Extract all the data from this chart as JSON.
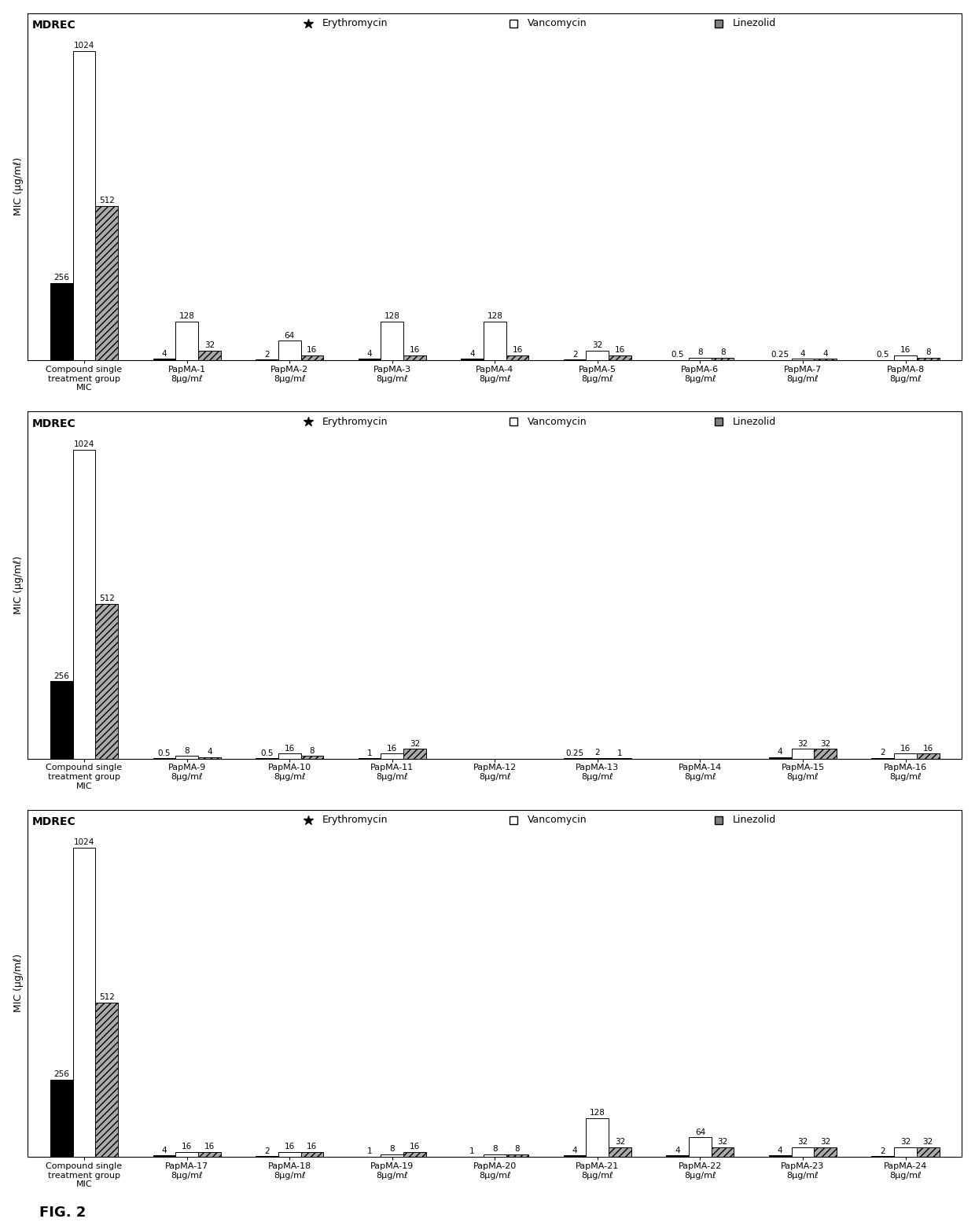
{
  "panels": [
    {
      "title": "MDREC",
      "groups": [
        "Compound single\ntreatment group\nMIC",
        "PapMA-1\n8μg/mℓ",
        "PapMA-2\n8μg/mℓ",
        "PapMA-3\n8μg/mℓ",
        "PapMA-4\n8μg/mℓ",
        "PapMA-5\n8μg/mℓ",
        "PapMA-6\n8μg/mℓ",
        "PapMA-7\n8μg/mℓ",
        "PapMA-8\n8μg/mℓ"
      ],
      "erythromycin": [
        256,
        4,
        2,
        4,
        4,
        2,
        0.5,
        0.25,
        0.5
      ],
      "vancomycin": [
        1024,
        128,
        64,
        128,
        128,
        32,
        8,
        4,
        16
      ],
      "linezolid": [
        512,
        32,
        16,
        16,
        16,
        16,
        8,
        4,
        8
      ]
    },
    {
      "title": "MDREC",
      "groups": [
        "Compound single\ntreatment group\nMIC",
        "PapMA-9\n8μg/mℓ",
        "PapMA-10\n8μg/mℓ",
        "PapMA-11\n8μg/mℓ",
        "PapMA-12\n8μg/mℓ",
        "PapMA-13\n8μg/mℓ",
        "PapMA-14\n8μg/mℓ",
        "PapMA-15\n8μg/mℓ",
        "PapMA-16\n8μg/mℓ"
      ],
      "erythromycin": [
        256,
        0.5,
        0.5,
        1,
        0,
        0.25,
        0,
        4,
        2
      ],
      "vancomycin": [
        1024,
        8,
        16,
        16,
        0,
        2,
        0,
        32,
        16
      ],
      "linezolid": [
        512,
        4,
        8,
        32,
        0,
        1,
        0,
        32,
        16
      ]
    },
    {
      "title": "MDREC",
      "groups": [
        "Compound single\ntreatment group\nMIC",
        "PapMA-17\n8μg/mℓ",
        "PapMA-18\n8μg/mℓ",
        "PapMA-19\n8μg/mℓ",
        "PapMA-20\n8μg/mℓ",
        "PapMA-21\n8μg/mℓ",
        "PapMA-22\n8μg/mℓ",
        "PapMA-23\n8μg/mℓ",
        "PapMA-24\n8μg/mℓ"
      ],
      "erythromycin": [
        256,
        4,
        2,
        1,
        1,
        4,
        4,
        4,
        2
      ],
      "vancomycin": [
        1024,
        16,
        16,
        8,
        8,
        128,
        64,
        32,
        32
      ],
      "linezolid": [
        512,
        16,
        16,
        16,
        8,
        32,
        32,
        32,
        32
      ]
    }
  ],
  "ylabel": "MIC (μg/mℓ)",
  "ylim": [
    0,
    1150
  ],
  "bar_width": 0.22,
  "erythromycin_color": "#000000",
  "vancomycin_color": "#ffffff",
  "linezolid_color": "#aaaaaa",
  "linezolid_hatch": "////",
  "legend_labels": [
    "Erythromycin",
    "Vancomycin",
    "Linezolid"
  ],
  "legend_markers": [
    "★",
    "□",
    "▨"
  ],
  "fig_caption": "FIG. 2",
  "background_color": "#ffffff",
  "border_color": "#000000",
  "label_fontsize": 7.5,
  "tick_fontsize": 8.0,
  "title_fontsize": 10,
  "ylabel_fontsize": 9
}
